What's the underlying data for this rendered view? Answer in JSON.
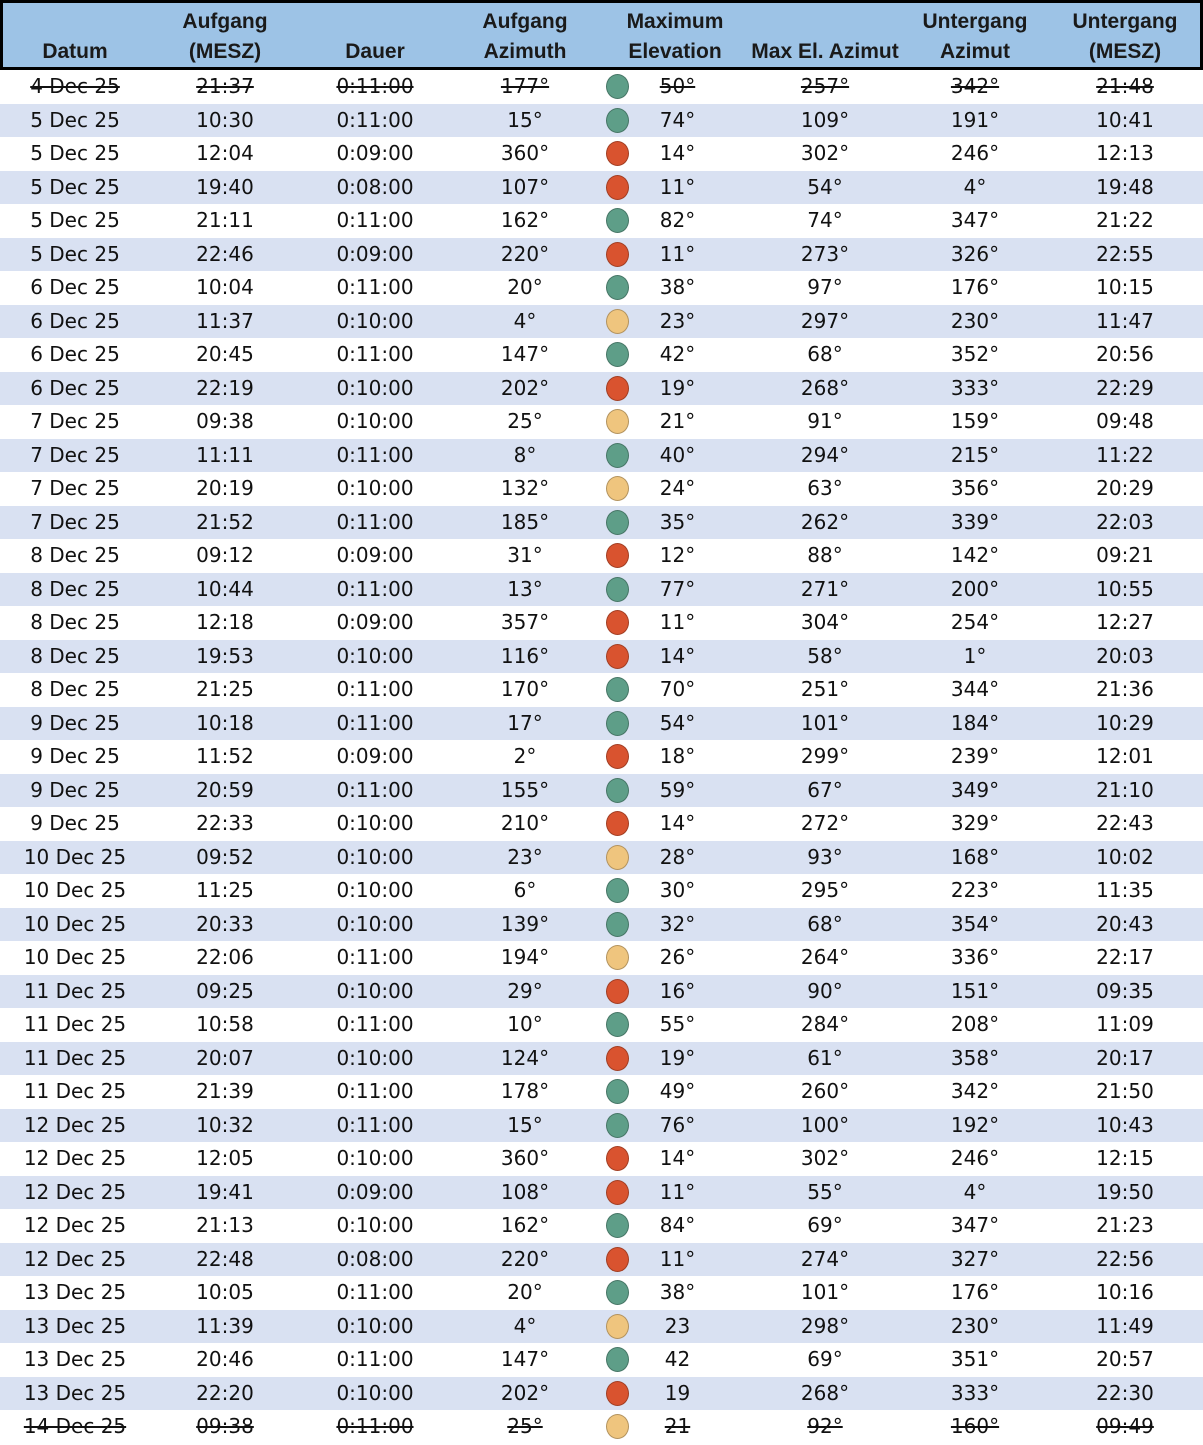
{
  "colors": {
    "header_bg": "#9dc3e6",
    "stripe": "#d9e1f2",
    "green": "#5e9e88",
    "red": "#d9532f",
    "yellow": "#efc57e"
  },
  "headers": [
    "Datum",
    "Aufgang (MESZ)",
    "Dauer",
    "Aufgang Azimuth",
    "Maximum Elevation",
    "Max El. Azimut",
    "Untergang Azimut",
    "Untergang (MESZ)"
  ],
  "rows": [
    [
      "4 Dec 25",
      "21:37",
      "0:11:00",
      "177°",
      "green",
      "50°",
      "257°",
      "342°",
      "21:48",
      true
    ],
    [
      "5 Dec 25",
      "10:30",
      "0:11:00",
      "15°",
      "green",
      "74°",
      "109°",
      "191°",
      "10:41",
      false
    ],
    [
      "5 Dec 25",
      "12:04",
      "0:09:00",
      "360°",
      "red",
      "14°",
      "302°",
      "246°",
      "12:13",
      false
    ],
    [
      "5 Dec 25",
      "19:40",
      "0:08:00",
      "107°",
      "red",
      "11°",
      "54°",
      "4°",
      "19:48",
      false
    ],
    [
      "5 Dec 25",
      "21:11",
      "0:11:00",
      "162°",
      "green",
      "82°",
      "74°",
      "347°",
      "21:22",
      false
    ],
    [
      "5 Dec 25",
      "22:46",
      "0:09:00",
      "220°",
      "red",
      "11°",
      "273°",
      "326°",
      "22:55",
      false
    ],
    [
      "6 Dec 25",
      "10:04",
      "0:11:00",
      "20°",
      "green",
      "38°",
      "97°",
      "176°",
      "10:15",
      false
    ],
    [
      "6 Dec 25",
      "11:37",
      "0:10:00",
      "4°",
      "yellow",
      "23°",
      "297°",
      "230°",
      "11:47",
      false
    ],
    [
      "6 Dec 25",
      "20:45",
      "0:11:00",
      "147°",
      "green",
      "42°",
      "68°",
      "352°",
      "20:56",
      false
    ],
    [
      "6 Dec 25",
      "22:19",
      "0:10:00",
      "202°",
      "red",
      "19°",
      "268°",
      "333°",
      "22:29",
      false
    ],
    [
      "7 Dec 25",
      "09:38",
      "0:10:00",
      "25°",
      "yellow",
      "21°",
      "91°",
      "159°",
      "09:48",
      false
    ],
    [
      "7 Dec 25",
      "11:11",
      "0:11:00",
      "8°",
      "green",
      "40°",
      "294°",
      "215°",
      "11:22",
      false
    ],
    [
      "7 Dec 25",
      "20:19",
      "0:10:00",
      "132°",
      "yellow",
      "24°",
      "63°",
      "356°",
      "20:29",
      false
    ],
    [
      "7 Dec 25",
      "21:52",
      "0:11:00",
      "185°",
      "green",
      "35°",
      "262°",
      "339°",
      "22:03",
      false
    ],
    [
      "8 Dec 25",
      "09:12",
      "0:09:00",
      "31°",
      "red",
      "12°",
      "88°",
      "142°",
      "09:21",
      false
    ],
    [
      "8 Dec 25",
      "10:44",
      "0:11:00",
      "13°",
      "green",
      "77°",
      "271°",
      "200°",
      "10:55",
      false
    ],
    [
      "8 Dec 25",
      "12:18",
      "0:09:00",
      "357°",
      "red",
      "11°",
      "304°",
      "254°",
      "12:27",
      false
    ],
    [
      "8 Dec 25",
      "19:53",
      "0:10:00",
      "116°",
      "red",
      "14°",
      "58°",
      "1°",
      "20:03",
      false
    ],
    [
      "8 Dec 25",
      "21:25",
      "0:11:00",
      "170°",
      "green",
      "70°",
      "251°",
      "344°",
      "21:36",
      false
    ],
    [
      "9 Dec 25",
      "10:18",
      "0:11:00",
      "17°",
      "green",
      "54°",
      "101°",
      "184°",
      "10:29",
      false
    ],
    [
      "9 Dec 25",
      "11:52",
      "0:09:00",
      "2°",
      "red",
      "18°",
      "299°",
      "239°",
      "12:01",
      false
    ],
    [
      "9 Dec 25",
      "20:59",
      "0:11:00",
      "155°",
      "green",
      "59°",
      "67°",
      "349°",
      "21:10",
      false
    ],
    [
      "9 Dec 25",
      "22:33",
      "0:10:00",
      "210°",
      "red",
      "14°",
      "272°",
      "329°",
      "22:43",
      false
    ],
    [
      "10 Dec 25",
      "09:52",
      "0:10:00",
      "23°",
      "yellow",
      "28°",
      "93°",
      "168°",
      "10:02",
      false
    ],
    [
      "10 Dec 25",
      "11:25",
      "0:10:00",
      "6°",
      "green",
      "30°",
      "295°",
      "223°",
      "11:35",
      false
    ],
    [
      "10 Dec 25",
      "20:33",
      "0:10:00",
      "139°",
      "green",
      "32°",
      "68°",
      "354°",
      "20:43",
      false
    ],
    [
      "10 Dec 25",
      "22:06",
      "0:11:00",
      "194°",
      "yellow",
      "26°",
      "264°",
      "336°",
      "22:17",
      false
    ],
    [
      "11 Dec 25",
      "09:25",
      "0:10:00",
      "29°",
      "red",
      "16°",
      "90°",
      "151°",
      "09:35",
      false
    ],
    [
      "11 Dec 25",
      "10:58",
      "0:11:00",
      "10°",
      "green",
      "55°",
      "284°",
      "208°",
      "11:09",
      false
    ],
    [
      "11 Dec 25",
      "20:07",
      "0:10:00",
      "124°",
      "red",
      "19°",
      "61°",
      "358°",
      "20:17",
      false
    ],
    [
      "11 Dec 25",
      "21:39",
      "0:11:00",
      "178°",
      "green",
      "49°",
      "260°",
      "342°",
      "21:50",
      false
    ],
    [
      "12 Dec 25",
      "10:32",
      "0:11:00",
      "15°",
      "green",
      "76°",
      "100°",
      "192°",
      "10:43",
      false
    ],
    [
      "12 Dec 25",
      "12:05",
      "0:10:00",
      "360°",
      "red",
      "14°",
      "302°",
      "246°",
      "12:15",
      false
    ],
    [
      "12 Dec 25",
      "19:41",
      "0:09:00",
      "108°",
      "red",
      "11°",
      "55°",
      "4°",
      "19:50",
      false
    ],
    [
      "12 Dec 25",
      "21:13",
      "0:10:00",
      "162°",
      "green",
      "84°",
      "69°",
      "347°",
      "21:23",
      false
    ],
    [
      "12 Dec 25",
      "22:48",
      "0:08:00",
      "220°",
      "red",
      "11°",
      "274°",
      "327°",
      "22:56",
      false
    ],
    [
      "13 Dec 25",
      "10:05",
      "0:11:00",
      "20°",
      "green",
      "38°",
      "101°",
      "176°",
      "10:16",
      false
    ],
    [
      "13 Dec 25",
      "11:39",
      "0:10:00",
      "4°",
      "yellow",
      "23",
      "298°",
      "230°",
      "11:49",
      false
    ],
    [
      "13 Dec 25",
      "20:46",
      "0:11:00",
      "147°",
      "green",
      "42",
      "69°",
      "351°",
      "20:57",
      false
    ],
    [
      "13 Dec 25",
      "22:20",
      "0:10:00",
      "202°",
      "red",
      "19",
      "268°",
      "333°",
      "22:30",
      false
    ],
    [
      "14 Dec 25",
      "09:38",
      "0:11:00",
      "25°",
      "yellow",
      "21",
      "92°",
      "160°",
      "09:49",
      true
    ]
  ]
}
